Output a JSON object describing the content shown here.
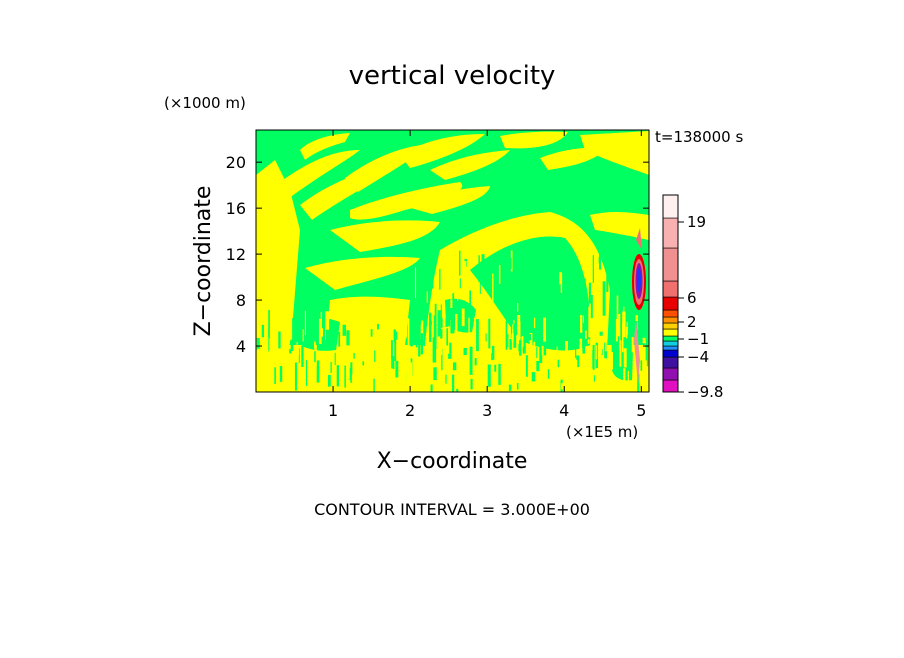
{
  "chart_data": {
    "type": "heatmap",
    "title": "vertical velocity",
    "xlabel": "X−coordinate",
    "ylabel": "Z−coordinate",
    "x_unit": "(×1E5 m)",
    "y_unit": "(×1000 m)",
    "time_label": "t=138000 s",
    "footer": "CONTOUR INTERVAL = 3.000E+00",
    "xlim": [
      0,
      5.1
    ],
    "ylim": [
      0,
      22.8
    ],
    "x_ticks": [
      {
        "value": 1,
        "label": "1"
      },
      {
        "value": 2,
        "label": "2"
      },
      {
        "value": 3,
        "label": "3"
      },
      {
        "value": 4,
        "label": "4"
      },
      {
        "value": 5,
        "label": "5"
      }
    ],
    "y_ticks": [
      {
        "value": 4,
        "label": "4"
      },
      {
        "value": 8,
        "label": "8"
      },
      {
        "value": 12,
        "label": "12"
      },
      {
        "value": 16,
        "label": "16"
      },
      {
        "value": 20,
        "label": "20"
      }
    ],
    "colorbar": {
      "levels": [
        {
          "color": "#e010c0"
        },
        {
          "color": "#9010b0"
        },
        {
          "color": "#4010a0"
        },
        {
          "color": "#0000d0"
        },
        {
          "color": "#2090ff"
        },
        {
          "color": "#10d0e0"
        },
        {
          "color": "#00ff60"
        },
        {
          "color": "#ffff00"
        },
        {
          "color": "#ffd000"
        },
        {
          "color": "#ff9000"
        },
        {
          "color": "#ff5000"
        },
        {
          "color": "#e80000"
        },
        {
          "color": "#f07070"
        },
        {
          "color": "#f09090"
        },
        {
          "color": "#f8b0b0"
        },
        {
          "color": "#fff0f0"
        }
      ],
      "labels": [
        "19",
        "6",
        "2",
        "−1",
        "−4",
        "−9.8"
      ],
      "min": -9.8,
      "max": 19
    },
    "dominant_values": [
      {
        "range": "−1 to 2",
        "color": "#00ff60"
      },
      {
        "range": "2 to 5",
        "color": "#ffff00"
      }
    ],
    "features": [
      {
        "x": 5.0,
        "z_range": [
          3.5,
          13
        ],
        "value_range": [
          -9.8,
          19
        ],
        "description": "strong updraft/downdraft pair near right boundary"
      }
    ]
  }
}
